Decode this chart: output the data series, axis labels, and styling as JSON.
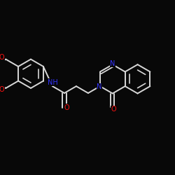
{
  "background_color": "#080808",
  "bond_color": "#d8d8d8",
  "atom_color_N": "#3333ff",
  "atom_color_O": "#ff1111",
  "bond_width": 1.4,
  "figsize": [
    2.5,
    2.5
  ],
  "dpi": 100,
  "xlim": [
    0,
    10
  ],
  "ylim": [
    0,
    10
  ]
}
